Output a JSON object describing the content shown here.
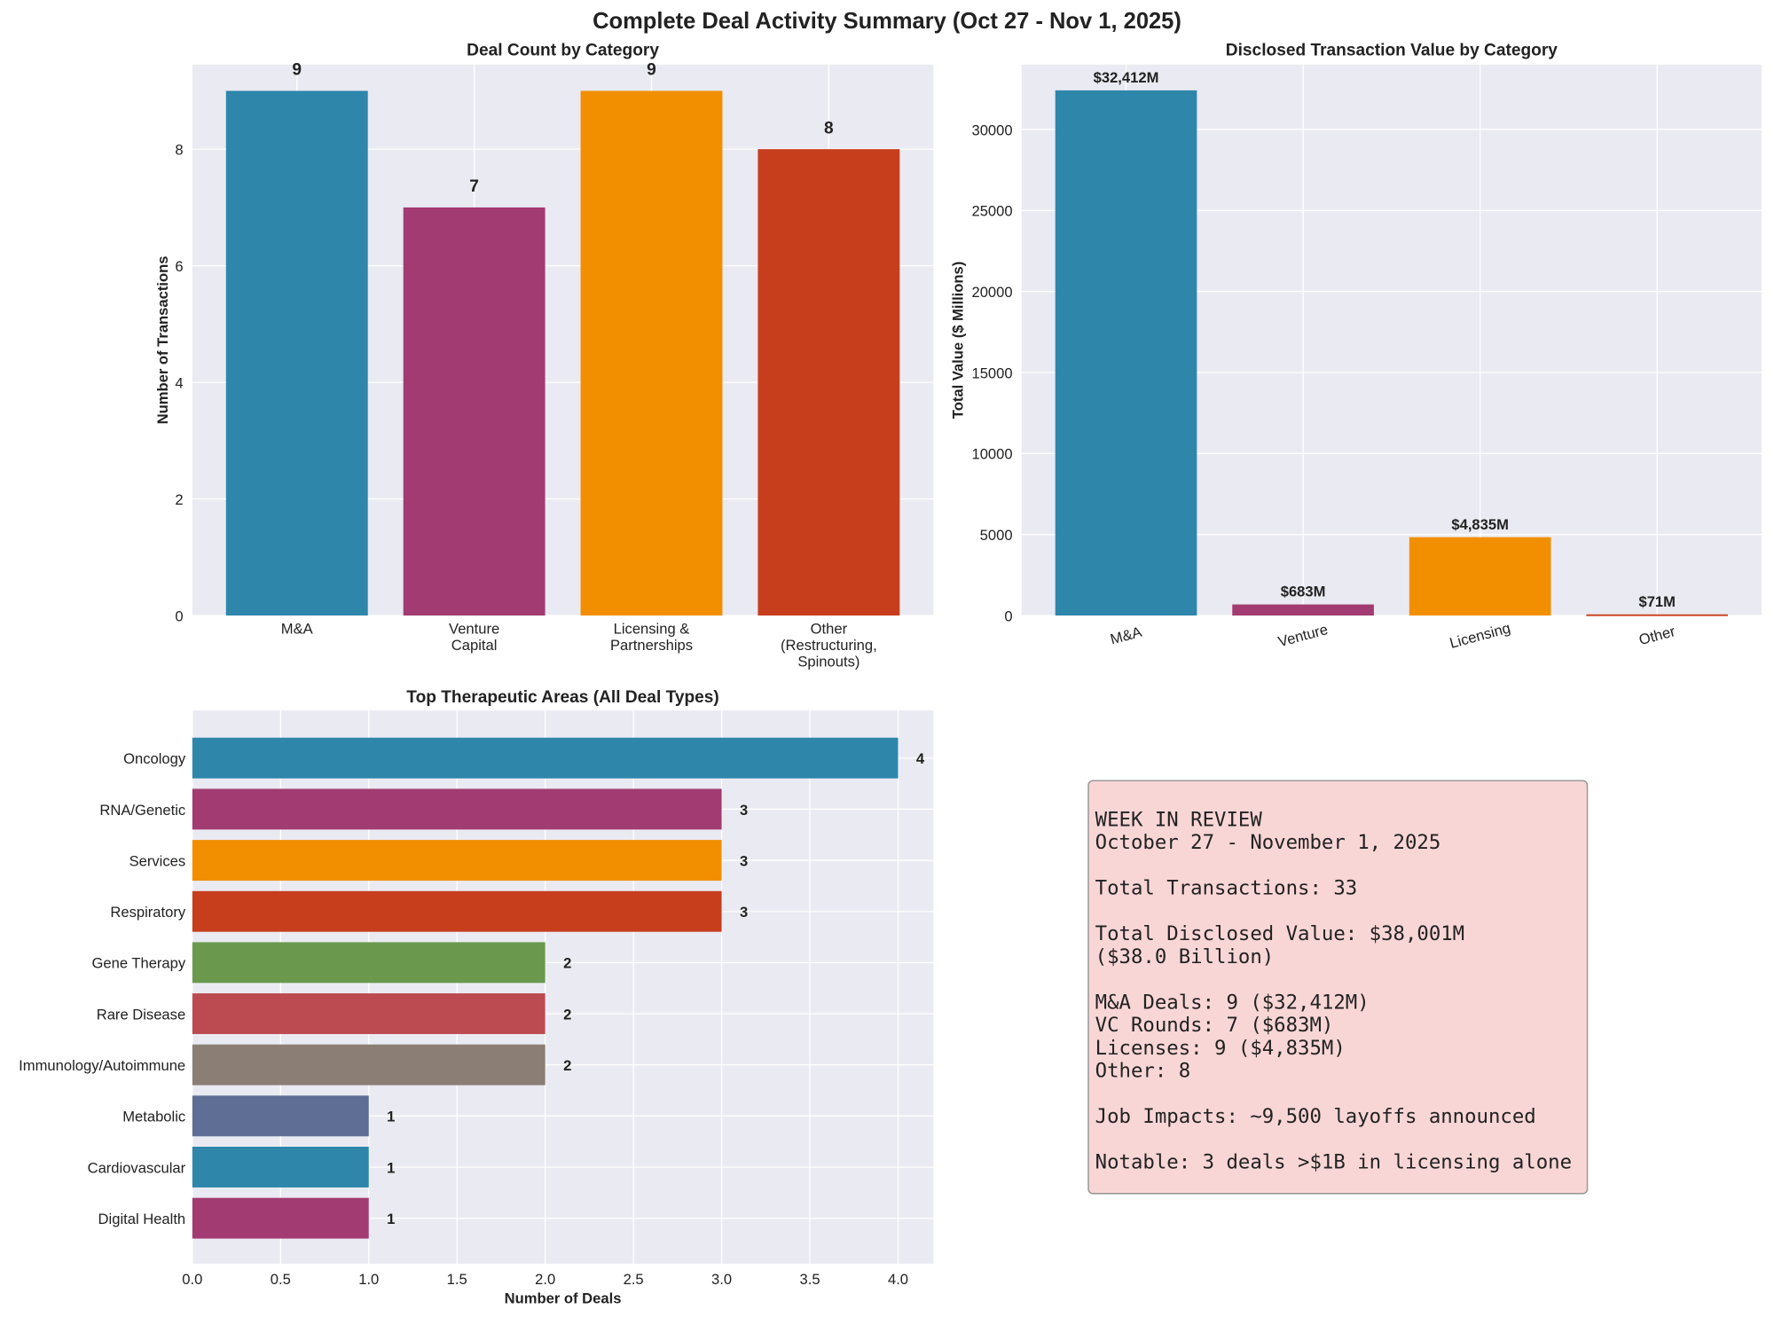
{
  "title": "Complete Deal Activity Summary (Oct 27 - Nov 1, 2025)",
  "colors": {
    "axes_bg": "#eaeaf2",
    "grid": "#ffffff",
    "textbox_bg": "#f9d6d6",
    "textbox_border": "#999999"
  },
  "chart_data": [
    {
      "type": "bar",
      "title": "Deal Count by Category",
      "xlabel": "",
      "ylabel": "Number of Transactions",
      "categories": [
        "M&A",
        "Venture\nCapital",
        "Licensing &\nPartnerships",
        "Other\n(Restructuring,\nSpinouts)"
      ],
      "values": [
        9,
        7,
        9,
        8
      ],
      "data_labels": [
        "9",
        "7",
        "9",
        "8"
      ],
      "colors": [
        "#2e86ab",
        "#a23b72",
        "#f18f01",
        "#c73e1d"
      ],
      "ylim": [
        0,
        9.45
      ],
      "yticks": [
        0,
        2,
        4,
        6,
        8
      ],
      "grid": true
    },
    {
      "type": "bar",
      "title": "Disclosed Transaction Value by Category",
      "xlabel": "",
      "ylabel": "Total Value ($ Millions)",
      "categories": [
        "M&A",
        "Venture",
        "Licensing",
        "Other"
      ],
      "values": [
        32412,
        683,
        4835,
        71
      ],
      "data_labels": [
        "$32,412M",
        "$683M",
        "$4,835M",
        "$71M"
      ],
      "colors": [
        "#2e86ab",
        "#a23b72",
        "#f18f01",
        "#c73e1d"
      ],
      "ylim": [
        0,
        34000
      ],
      "yticks": [
        0,
        5000,
        10000,
        15000,
        20000,
        25000,
        30000
      ],
      "xtick_rotation": 15,
      "grid": true
    },
    {
      "type": "bar",
      "orientation": "horizontal",
      "title": "Top Therapeutic Areas (All Deal Types)",
      "xlabel": "Number of Deals",
      "ylabel": "",
      "categories": [
        "Oncology",
        "RNA/Genetic",
        "Services",
        "Respiratory",
        "Gene Therapy",
        "Rare Disease",
        "Immunology/Autoimmune",
        "Metabolic",
        "Cardiovascular",
        "Digital Health"
      ],
      "values": [
        4,
        3,
        3,
        3,
        2,
        2,
        2,
        1,
        1,
        1
      ],
      "data_labels": [
        "4",
        "3",
        "3",
        "3",
        "2",
        "2",
        "2",
        "1",
        "1",
        "1"
      ],
      "colors": [
        "#2e86ab",
        "#a23b72",
        "#f18f01",
        "#c73e1d",
        "#6a994e",
        "#bc4b51",
        "#8b7e74",
        "#5e6e94",
        "#2e86ab",
        "#a23b72"
      ],
      "xlim": [
        0,
        4.2
      ],
      "xticks": [
        "0.0",
        "0.5",
        "1.0",
        "1.5",
        "2.0",
        "2.5",
        "3.0",
        "3.5",
        "4.0"
      ],
      "grid": true
    }
  ],
  "summary_box": {
    "lines": [
      "WEEK IN REVIEW",
      "October 27 - November 1, 2025",
      "",
      "Total Transactions: 33",
      "",
      "Total Disclosed Value: $38,001M",
      "($38.0 Billion)",
      "",
      "M&A Deals: 9 ($32,412M)",
      "VC Rounds: 7 ($683M)",
      "Licenses: 9 ($4,835M)",
      "Other: 8",
      "",
      "Job Impacts: ~9,500 layoffs announced",
      "",
      "Notable: 3 deals >$1B in licensing alone"
    ]
  }
}
